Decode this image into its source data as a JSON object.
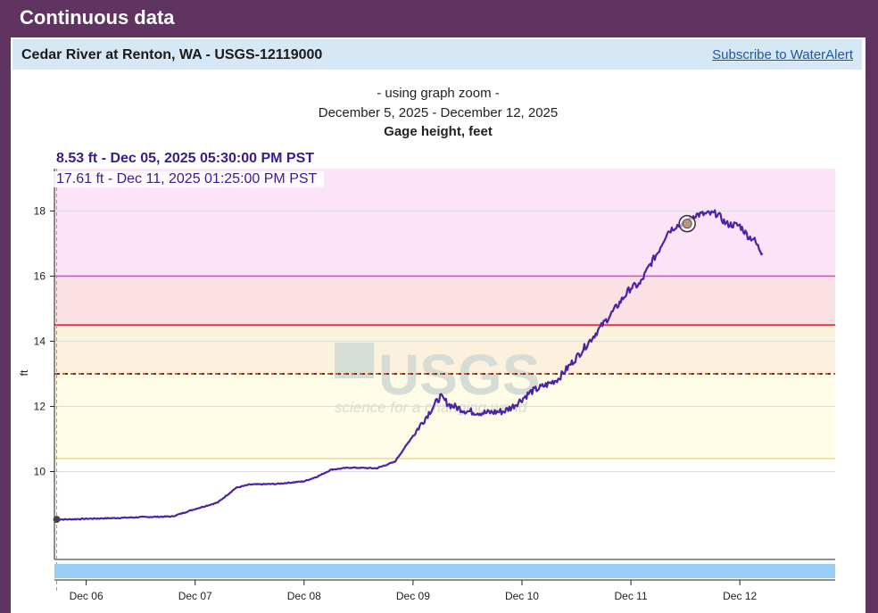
{
  "header": {
    "title": "Continuous data"
  },
  "site": {
    "name": "Cedar River at Renton, WA - USGS-12119000",
    "subscribe_link": "Subscribe to WaterAlert"
  },
  "graph_header": {
    "zoom_note": "- using graph zoom -",
    "date_range": "December 5, 2025 - December 12, 2025",
    "parameter": "Gage height, feet"
  },
  "tooltips": {
    "start": "8.53 ft - Dec 05, 2025 05:30:00 PM PST",
    "hover": "17.61 ft - Dec 11, 2025 01:25:00 PM PST"
  },
  "watermark": {
    "logo": "USGS",
    "tagline": "science for a changing world"
  },
  "colors": {
    "series": "#4b22a8",
    "band_top": "#fde3f8",
    "band_mid": "#fbe0e4",
    "band_low": "#fbf1dd",
    "band_base": "#fefbe6",
    "line_16": "#d64fd4",
    "line_14_5": "#e12a2a",
    "line_13": "#8b2a1c",
    "line_10_4": "#f5de76",
    "brush": "#99cdf6"
  },
  "chart_data": {
    "type": "line",
    "title": "Gage height, feet",
    "ylabel": "ft",
    "xlabel": "",
    "x_unit": "hours after Dec 05 12:00 AM PST",
    "xlim": [
      17.0,
      189.0
    ],
    "ylim": [
      7.3,
      19.3
    ],
    "y_ticks": [
      10,
      12,
      14,
      16,
      18
    ],
    "x_ticks": [
      {
        "label": "Dec 06",
        "x": 24
      },
      {
        "label": "Dec 07",
        "x": 48
      },
      {
        "label": "Dec 08",
        "x": 72
      },
      {
        "label": "Dec 09",
        "x": 96
      },
      {
        "label": "Dec 10",
        "x": 120
      },
      {
        "label": "Dec 11",
        "x": 144
      },
      {
        "label": "Dec 12",
        "x": 168
      }
    ],
    "threshold_bands": [
      {
        "from": 16.0,
        "to": 19.3,
        "color": "band_top"
      },
      {
        "from": 14.5,
        "to": 16.0,
        "color": "band_mid"
      },
      {
        "from": 13.0,
        "to": 14.5,
        "color": "band_low"
      },
      {
        "from": 10.4,
        "to": 13.0,
        "color": "band_base"
      }
    ],
    "threshold_lines": [
      {
        "value": 16.0,
        "color": "line_16",
        "dashed": false
      },
      {
        "value": 14.5,
        "color": "line_14_5",
        "dashed": false
      },
      {
        "value": 13.0,
        "color": "line_13",
        "dashed": true
      },
      {
        "value": 10.4,
        "color": "line_10_4",
        "dashed": false
      }
    ],
    "grid": true,
    "series": [
      {
        "name": "",
        "points": [
          [
            17.5,
            8.53
          ],
          [
            20,
            8.53
          ],
          [
            24,
            8.55
          ],
          [
            30,
            8.57
          ],
          [
            36,
            8.6
          ],
          [
            43,
            8.62
          ],
          [
            48,
            8.85
          ],
          [
            53,
            9.05
          ],
          [
            57,
            9.5
          ],
          [
            60,
            9.6
          ],
          [
            66,
            9.62
          ],
          [
            72,
            9.7
          ],
          [
            75,
            9.85
          ],
          [
            78,
            10.06
          ],
          [
            82,
            10.12
          ],
          [
            88,
            10.1
          ],
          [
            92,
            10.3
          ],
          [
            96,
            11.1
          ],
          [
            98,
            11.5
          ],
          [
            101,
            12.1
          ],
          [
            102,
            12.3
          ],
          [
            104,
            12.05
          ],
          [
            108,
            11.85
          ],
          [
            112,
            11.8
          ],
          [
            116,
            11.85
          ],
          [
            118,
            12.0
          ],
          [
            122,
            12.45
          ],
          [
            126,
            12.7
          ],
          [
            128,
            12.85
          ],
          [
            132,
            13.5
          ],
          [
            136,
            14.2
          ],
          [
            140,
            14.9
          ],
          [
            144,
            15.65
          ],
          [
            146,
            15.75
          ],
          [
            148,
            16.3
          ],
          [
            150,
            16.75
          ],
          [
            152,
            17.35
          ],
          [
            154,
            17.55
          ],
          [
            156,
            17.6
          ],
          [
            158,
            17.88
          ],
          [
            160,
            17.9
          ],
          [
            163,
            17.92
          ],
          [
            165,
            17.6
          ],
          [
            168,
            17.55
          ],
          [
            170,
            17.2
          ],
          [
            171,
            17.15
          ],
          [
            172,
            16.9
          ],
          [
            173,
            16.7
          ]
        ]
      }
    ],
    "markers": [
      {
        "x": 17.5,
        "y": 8.53,
        "label": "start"
      },
      {
        "x": 156.4,
        "y": 17.61,
        "label": "hover"
      }
    ]
  }
}
